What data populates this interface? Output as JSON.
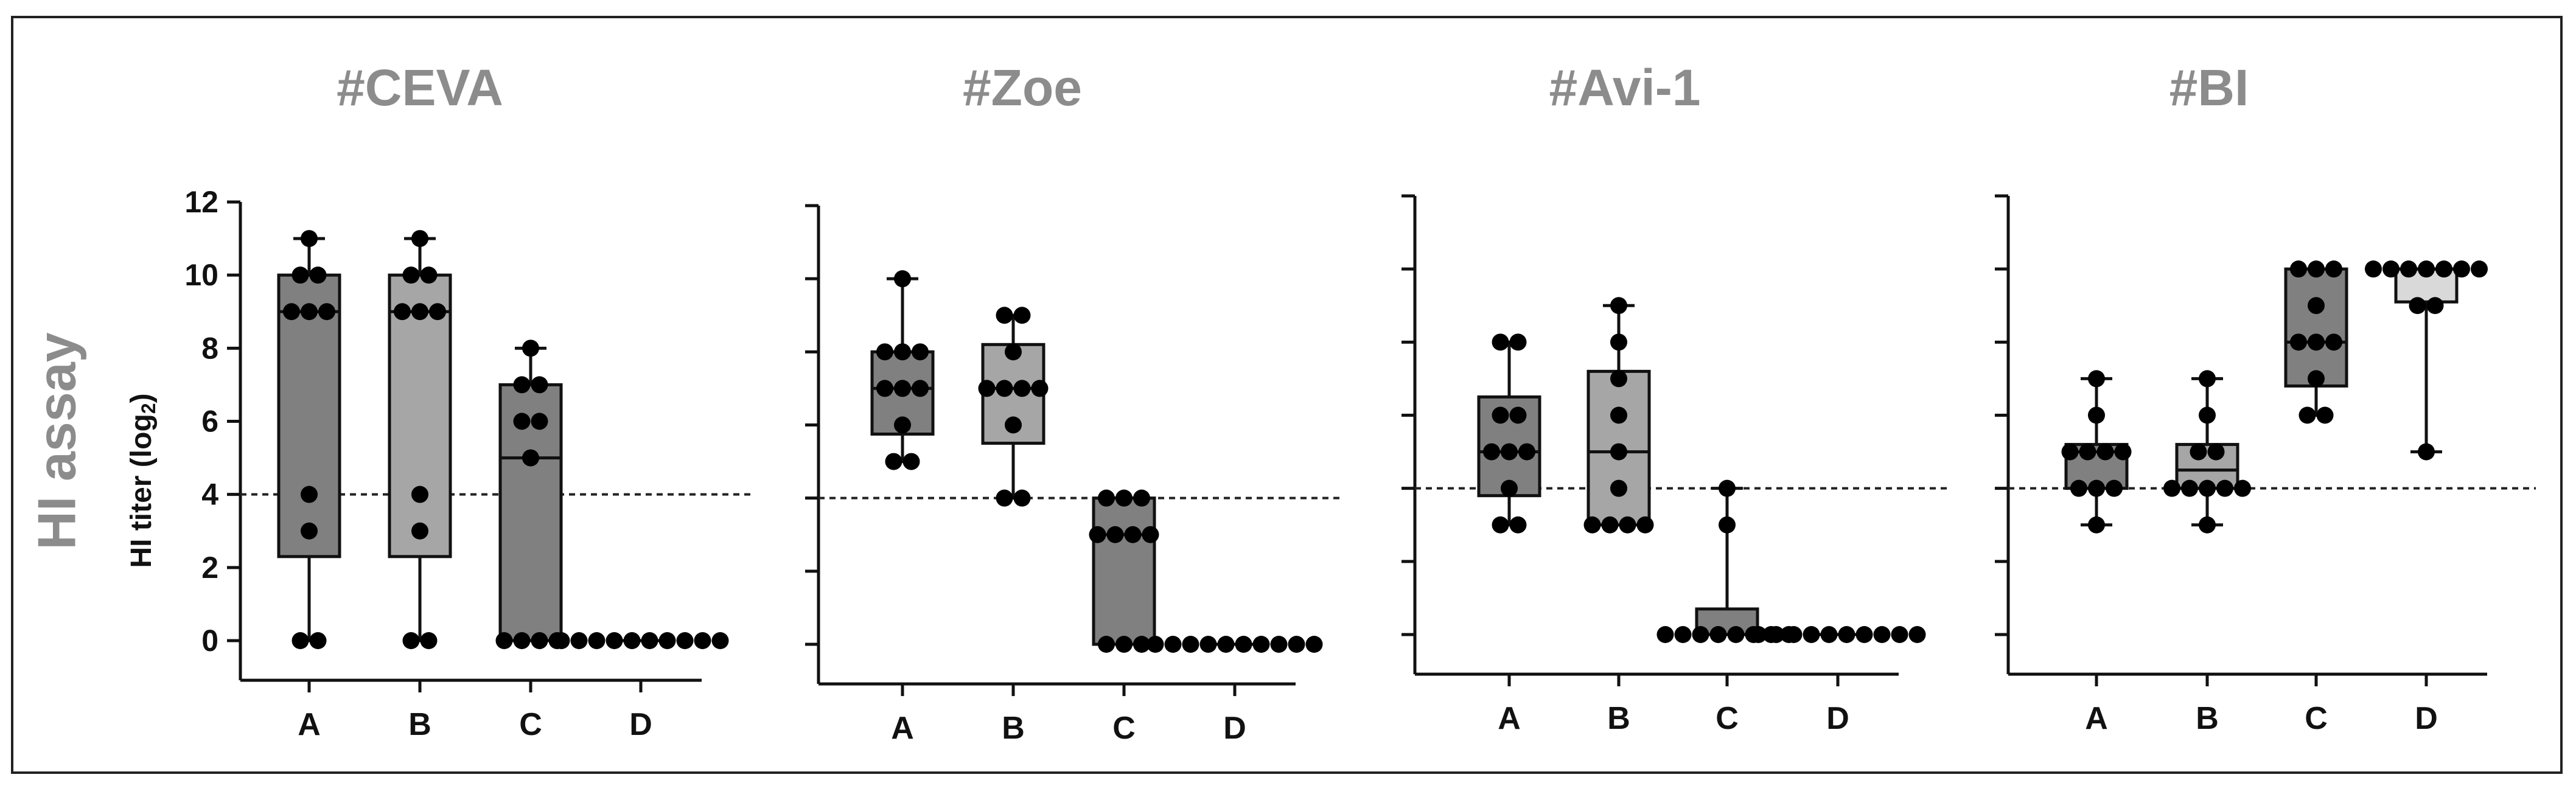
{
  "figure": {
    "side_label": "HI assay",
    "y_axis_label": "HI titer (log",
    "y_axis_label_sub": "2",
    "y_axis_label_end": ")"
  },
  "chart_data": [
    {
      "type": "box",
      "title": "#CEVA",
      "categories": [
        "A",
        "B",
        "C",
        "D"
      ],
      "ylim": [
        -1,
        12
      ],
      "yticks": [
        0,
        2,
        4,
        6,
        8,
        10,
        12
      ],
      "show_tick_labels": true,
      "threshold": 4,
      "colors": [
        "#808080",
        "#a6a6a6",
        "#808080",
        "#808080"
      ],
      "boxes": [
        {
          "min": 0,
          "q1": 2.3,
          "median": 9,
          "q3": 10,
          "max": 11
        },
        {
          "min": 0,
          "q1": 2.3,
          "median": 9,
          "q3": 10,
          "max": 11
        },
        {
          "min": 0,
          "q1": 0,
          "median": 5,
          "q3": 7,
          "max": 8
        },
        {
          "min": 0,
          "q1": 0,
          "median": 0,
          "q3": 0,
          "max": 0
        }
      ],
      "points": [
        [
          11,
          10,
          10,
          9,
          9,
          9,
          4,
          3,
          0,
          0
        ],
        [
          11,
          10,
          10,
          9,
          9,
          9,
          4,
          3,
          0,
          0
        ],
        [
          8,
          7,
          7,
          6,
          6,
          5,
          0,
          0,
          0,
          0
        ],
        [
          0,
          0,
          0,
          0,
          0,
          0,
          0,
          0,
          0,
          0
        ]
      ]
    },
    {
      "type": "box",
      "title": "#Zoe",
      "categories": [
        "A",
        "B",
        "C",
        "D"
      ],
      "ylim": [
        -1,
        12
      ],
      "yticks": [
        0,
        2,
        4,
        6,
        8,
        10,
        12
      ],
      "show_tick_labels": false,
      "threshold": 4,
      "colors": [
        "#808080",
        "#a6a6a6",
        "#808080",
        "#808080"
      ],
      "boxes": [
        {
          "min": 5,
          "q1": 5.75,
          "median": 7,
          "q3": 8,
          "max": 10
        },
        {
          "min": 4,
          "q1": 5.5,
          "median": 7,
          "q3": 8.2,
          "max": 9
        },
        {
          "min": 0,
          "q1": 0,
          "median": 3,
          "q3": 4,
          "max": 4
        },
        {
          "min": 0,
          "q1": 0,
          "median": 0,
          "q3": 0,
          "max": 0
        }
      ],
      "points": [
        [
          10,
          8,
          8,
          8,
          7,
          7,
          7,
          6,
          5,
          5
        ],
        [
          9,
          9,
          8,
          7,
          7,
          7,
          7,
          6,
          4,
          4
        ],
        [
          4,
          4,
          4,
          3,
          3,
          3,
          3,
          0,
          0,
          0
        ],
        [
          0,
          0,
          0,
          0,
          0,
          0,
          0,
          0,
          0,
          0
        ]
      ]
    },
    {
      "type": "box",
      "title": "#Avi-1",
      "categories": [
        "A",
        "B",
        "C",
        "D"
      ],
      "ylim": [
        -1,
        12
      ],
      "yticks": [
        0,
        2,
        4,
        6,
        8,
        10,
        12
      ],
      "show_tick_labels": false,
      "threshold": 4,
      "colors": [
        "#808080",
        "#a6a6a6",
        "#808080",
        "#808080"
      ],
      "boxes": [
        {
          "min": 3,
          "q1": 3.8,
          "median": 5,
          "q3": 6.5,
          "max": 8
        },
        {
          "min": 3,
          "q1": 3,
          "median": 5,
          "q3": 7.2,
          "max": 9
        },
        {
          "min": 0,
          "q1": 0,
          "median": 0,
          "q3": 0.7,
          "max": 4
        },
        {
          "min": 0,
          "q1": 0,
          "median": 0,
          "q3": 0,
          "max": 0
        }
      ],
      "points": [
        [
          8,
          8,
          6,
          6,
          5,
          5,
          5,
          4,
          3,
          3
        ],
        [
          9,
          8,
          7,
          6,
          5,
          4,
          3,
          3,
          3,
          3
        ],
        [
          4,
          3,
          0,
          0,
          0,
          0,
          0,
          0,
          0,
          0
        ],
        [
          0,
          0,
          0,
          0,
          0,
          0,
          0,
          0,
          0,
          0
        ]
      ]
    },
    {
      "type": "box",
      "title": "#BI",
      "categories": [
        "A",
        "B",
        "C",
        "D"
      ],
      "ylim": [
        -1,
        12
      ],
      "yticks": [
        0,
        2,
        4,
        6,
        8,
        10,
        12
      ],
      "show_tick_labels": false,
      "threshold": 4,
      "colors": [
        "#808080",
        "#a6a6a6",
        "#808080",
        "#d9d9d9"
      ],
      "boxes": [
        {
          "min": 3,
          "q1": 4,
          "median": 5,
          "q3": 5.2,
          "max": 7
        },
        {
          "min": 3,
          "q1": 4,
          "median": 4.5,
          "q3": 5.2,
          "max": 7
        },
        {
          "min": 6,
          "q1": 6.8,
          "median": 8,
          "q3": 10,
          "max": 10
        },
        {
          "min": 5,
          "q1": 9.1,
          "median": 10,
          "q3": 10,
          "max": 10
        }
      ],
      "points": [
        [
          7,
          6,
          5,
          5,
          5,
          5,
          4,
          4,
          4,
          3
        ],
        [
          7,
          6,
          5,
          5,
          4,
          4,
          4,
          4,
          4,
          3
        ],
        [
          10,
          10,
          10,
          9,
          8,
          8,
          8,
          7,
          6,
          6
        ],
        [
          10,
          10,
          10,
          10,
          10,
          10,
          10,
          9,
          9,
          5
        ]
      ]
    }
  ]
}
